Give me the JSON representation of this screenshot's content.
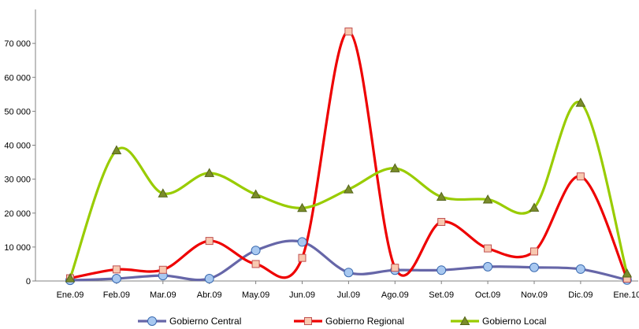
{
  "chart_data": {
    "type": "line",
    "smooth": true,
    "categories": [
      "Ene.09",
      "Feb.09",
      "Mar.09",
      "Abr.09",
      "May.09",
      "Jun.09",
      "Jul.09",
      "Ago.09",
      "Set.09",
      "Oct.09",
      "Nov.09",
      "Dic.09",
      "Ene.10"
    ],
    "ylim": [
      0,
      80000
    ],
    "yticks": [
      0,
      10000,
      20000,
      30000,
      40000,
      50000,
      60000,
      70000
    ],
    "ytick_labels": [
      "0",
      "10 000",
      "20 000",
      "30 000",
      "40 000",
      "50 000",
      "60 000",
      "70 000"
    ],
    "grid": false,
    "legend_position": "bottom",
    "series": [
      {
        "name": "Gobierno Central",
        "color": "#6666a8",
        "marker": "circle",
        "marker_fill": "#a8c8f0",
        "marker_stroke": "#3a6ab0",
        "values": [
          200,
          700,
          1600,
          700,
          9000,
          11500,
          2500,
          3200,
          3200,
          4200,
          4000,
          3500,
          300
        ]
      },
      {
        "name": "Gobierno Regional",
        "color": "#ee0000",
        "marker": "square",
        "marker_fill": "#f8c8b0",
        "marker_stroke": "#c05050",
        "values": [
          800,
          3400,
          3300,
          11800,
          5000,
          6800,
          73500,
          3900,
          17400,
          9600,
          8700,
          30800,
          700
        ]
      },
      {
        "name": "Gobierno Local",
        "color": "#99cc00",
        "marker": "triangle",
        "marker_fill": "#7a8c2a",
        "marker_stroke": "#55661a",
        "values": [
          800,
          38500,
          25800,
          31800,
          25500,
          21500,
          27000,
          33200,
          24800,
          24000,
          21600,
          52500,
          2200
        ]
      }
    ]
  }
}
